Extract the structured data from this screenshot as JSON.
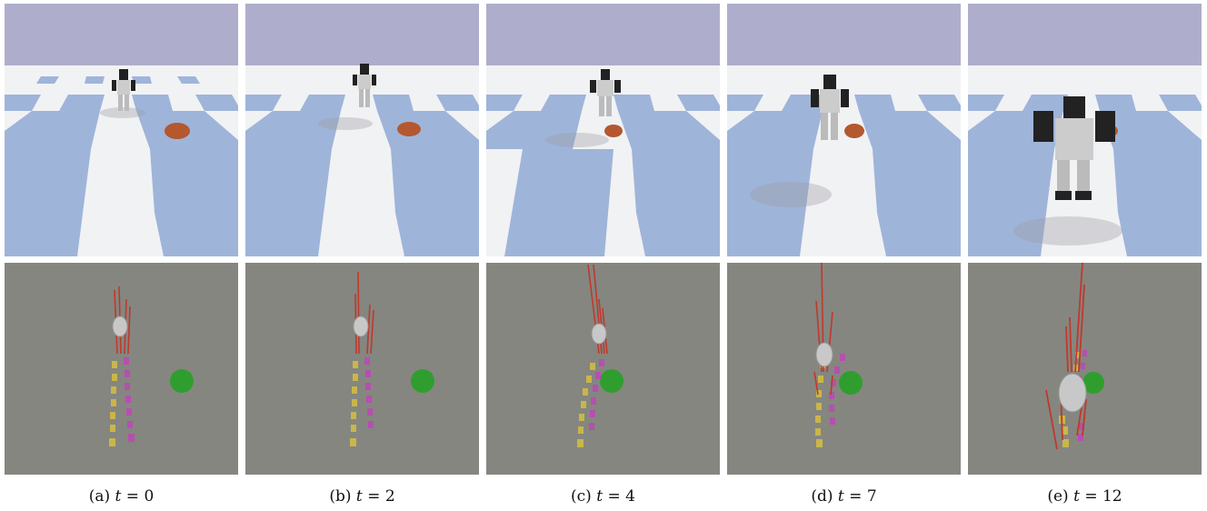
{
  "colors": {
    "sky": "#aeaecc",
    "tile_blue": "#9fb4d9",
    "tile_white": "#f1f2f4",
    "debug_bg": "#858680",
    "target_sphere": "#2f9e2f",
    "arrow": "#c0392b",
    "footstep_left": "#c9b64a",
    "footstep_right": "#b64fae",
    "ball": "#b3582f"
  },
  "panels": [
    {
      "id": "a",
      "caption_prefix": "(a)",
      "caption_var": "t",
      "caption_eq": "= 0"
    },
    {
      "id": "b",
      "caption_prefix": "(b)",
      "caption_var": "t",
      "caption_eq": "= 2"
    },
    {
      "id": "c",
      "caption_prefix": "(c)",
      "caption_var": "t",
      "caption_eq": "= 4"
    },
    {
      "id": "d",
      "caption_prefix": "(d)",
      "caption_var": "t",
      "caption_eq": "= 7"
    },
    {
      "id": "e",
      "caption_prefix": "(e)",
      "caption_var": "t",
      "caption_eq": "= 12"
    }
  ]
}
